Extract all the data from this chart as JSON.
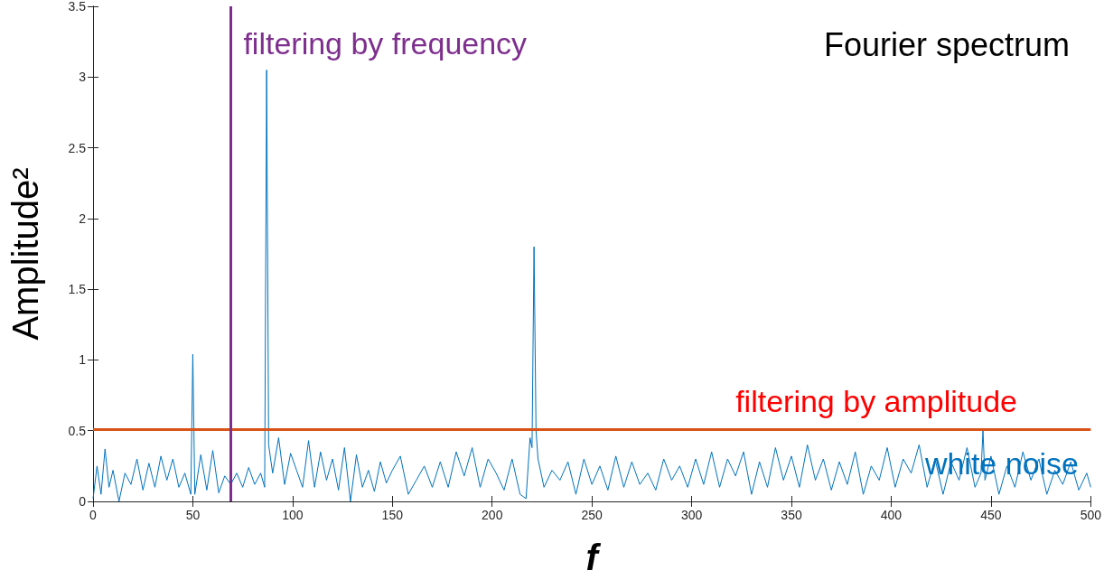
{
  "chart_data": {
    "type": "line",
    "title": "Fourier spectrum",
    "xlabel": "f",
    "ylabel": "Amplitude²",
    "x": [
      0,
      2,
      4,
      6,
      8,
      10,
      13,
      16,
      19,
      22,
      25,
      28,
      31,
      34,
      37,
      40,
      43,
      46,
      49,
      50,
      51,
      54,
      57,
      60,
      63,
      66,
      69,
      72,
      75,
      78,
      81,
      84,
      86,
      87,
      88,
      90,
      93,
      96,
      99,
      102,
      105,
      108,
      111,
      114,
      117,
      120,
      123,
      126,
      129,
      132,
      135,
      138,
      141,
      144,
      147,
      150,
      154,
      158,
      162,
      166,
      170,
      174,
      178,
      182,
      186,
      190,
      194,
      198,
      202,
      206,
      210,
      214,
      217,
      219,
      220,
      221,
      222,
      223,
      226,
      230,
      234,
      238,
      242,
      246,
      250,
      254,
      258,
      262,
      266,
      270,
      274,
      278,
      282,
      286,
      290,
      294,
      298,
      302,
      306,
      310,
      314,
      318,
      322,
      326,
      330,
      334,
      338,
      342,
      346,
      350,
      354,
      358,
      362,
      366,
      370,
      374,
      378,
      382,
      386,
      390,
      394,
      398,
      402,
      406,
      410,
      414,
      418,
      422,
      426,
      430,
      434,
      438,
      442,
      445,
      446,
      447,
      450,
      454,
      458,
      462,
      466,
      470,
      474,
      478,
      482,
      486,
      490,
      494,
      498,
      500
    ],
    "series": [
      {
        "name": "white noise",
        "color": "#0072bd",
        "values": [
          0.02,
          0.25,
          0.05,
          0.37,
          0.1,
          0.22,
          0.0,
          0.2,
          0.12,
          0.3,
          0.08,
          0.27,
          0.1,
          0.32,
          0.15,
          0.3,
          0.1,
          0.2,
          0.05,
          1.04,
          0.05,
          0.33,
          0.08,
          0.36,
          0.06,
          0.18,
          0.12,
          0.2,
          0.1,
          0.24,
          0.12,
          0.2,
          0.1,
          3.05,
          0.4,
          0.2,
          0.45,
          0.12,
          0.34,
          0.22,
          0.1,
          0.43,
          0.1,
          0.35,
          0.15,
          0.3,
          0.08,
          0.38,
          0.0,
          0.33,
          0.1,
          0.22,
          0.07,
          0.28,
          0.13,
          0.22,
          0.32,
          0.05,
          0.15,
          0.25,
          0.1,
          0.28,
          0.1,
          0.35,
          0.18,
          0.38,
          0.1,
          0.3,
          0.2,
          0.08,
          0.3,
          0.05,
          0.02,
          0.45,
          0.38,
          1.8,
          0.5,
          0.3,
          0.1,
          0.22,
          0.15,
          0.28,
          0.05,
          0.3,
          0.12,
          0.25,
          0.08,
          0.32,
          0.1,
          0.28,
          0.12,
          0.2,
          0.08,
          0.3,
          0.15,
          0.25,
          0.1,
          0.3,
          0.12,
          0.35,
          0.1,
          0.3,
          0.18,
          0.35,
          0.05,
          0.28,
          0.1,
          0.38,
          0.15,
          0.32,
          0.1,
          0.4,
          0.15,
          0.3,
          0.08,
          0.28,
          0.12,
          0.35,
          0.05,
          0.25,
          0.15,
          0.38,
          0.1,
          0.3,
          0.2,
          0.4,
          0.1,
          0.3,
          0.05,
          0.28,
          0.15,
          0.38,
          0.1,
          0.2,
          0.5,
          0.15,
          0.32,
          0.05,
          0.25,
          0.1,
          0.35,
          0.15,
          0.3,
          0.05,
          0.22,
          0.12,
          0.28,
          0.08,
          0.2,
          0.1
        ]
      }
    ],
    "xlim": [
      0,
      500
    ],
    "xticks": [
      0,
      50,
      100,
      150,
      200,
      250,
      300,
      350,
      400,
      450,
      500
    ],
    "ylim": [
      0,
      3.5
    ],
    "yticks": [
      0,
      0.5,
      1,
      1.5,
      2,
      2.5,
      3,
      3.5
    ],
    "ref_lines": [
      {
        "axis": "y",
        "value": 0.51,
        "label": "filtering by amplitude",
        "color": "#d95319"
      },
      {
        "axis": "x",
        "value": 69,
        "label": "filtering by frequency",
        "color": "#7e2f8e"
      }
    ],
    "grid": false,
    "legend": false,
    "marker": "none",
    "line_style": "solid"
  }
}
